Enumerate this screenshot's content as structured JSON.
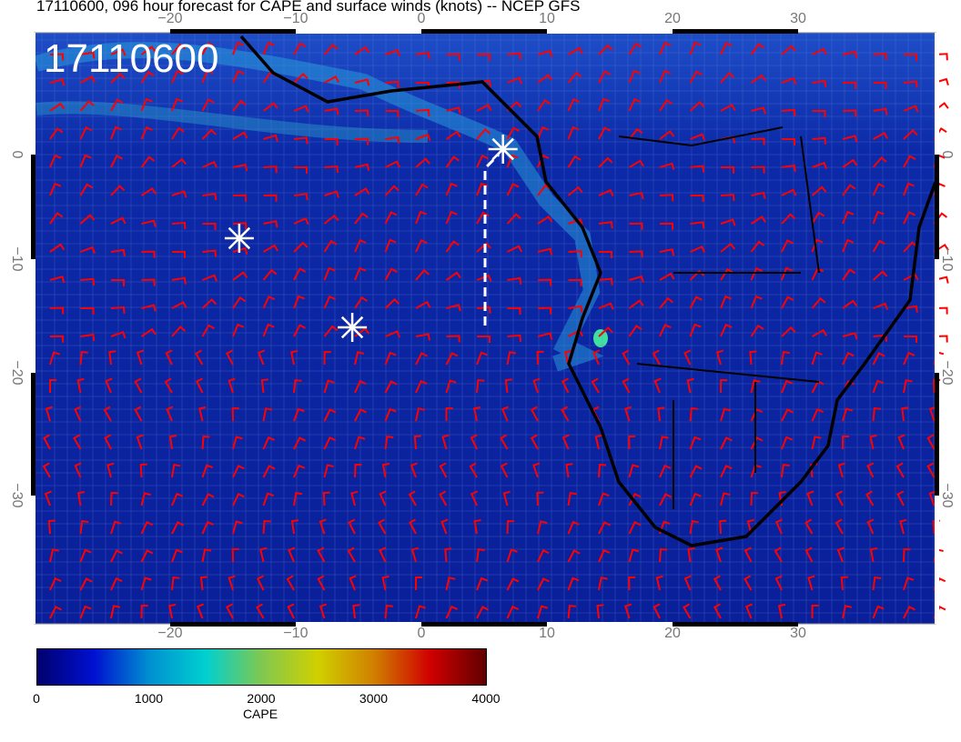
{
  "title": "17110600, 096 hour forecast for CAPE and surface winds (knots) -- NCEP GFS",
  "stamp": "17110600",
  "map": {
    "variable": "CAPE",
    "wind_units": "knots",
    "wind_barb_color": "#ff0000",
    "coastline_color": "#000000",
    "lon_ticks": [
      "−20",
      "−10",
      "0",
      "10",
      "20",
      "30"
    ],
    "lat_ticks": [
      "0",
      "−10",
      "−20",
      "−30"
    ],
    "markers": [
      {
        "type": "asterisk",
        "lon": -14.5,
        "lat": -8
      },
      {
        "type": "asterisk",
        "lon": -5.5,
        "lat": -16
      },
      {
        "type": "asterisk",
        "lon": 6.5,
        "lat": 0.5
      }
    ],
    "track": {
      "style": "dashed",
      "color": "#ffffff"
    }
  },
  "colorbar": {
    "label": "CAPE",
    "ticks": [
      "0",
      "1000",
      "2000",
      "3000",
      "4000"
    ],
    "range": [
      0,
      4000
    ],
    "colors": [
      "#00006e",
      "#0010d0",
      "#0090d0",
      "#00d0d0",
      "#80c850",
      "#d0d000",
      "#d08000",
      "#d00000",
      "#600000"
    ]
  }
}
